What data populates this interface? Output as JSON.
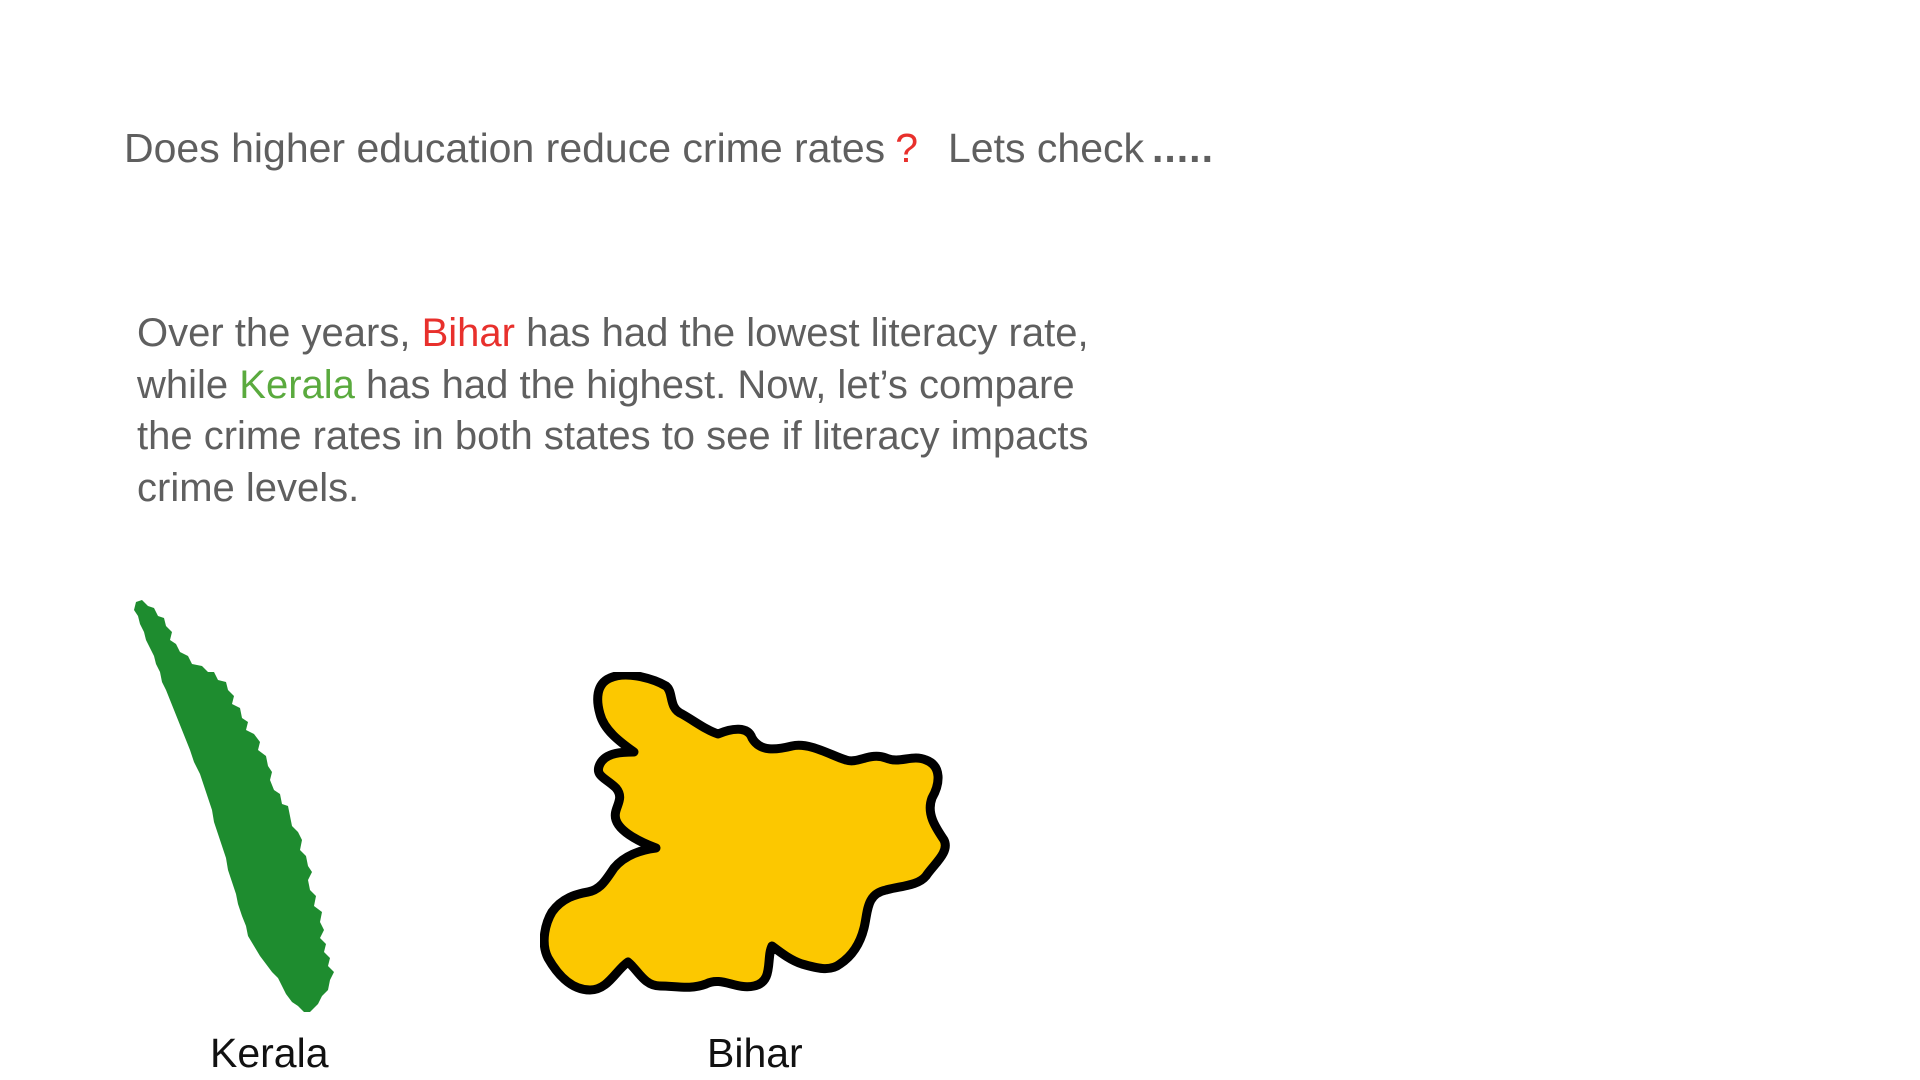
{
  "title": {
    "question": "Does higher education reduce crime rates",
    "question_mark": "?",
    "check": "Lets check",
    "dots": "....."
  },
  "body": {
    "part1": "Over the years, ",
    "state_low": "Bihar",
    "part2": " has had the lowest literacy rate, while ",
    "state_high": "Kerala",
    "part3": " has had the highest. Now, let’s compare the crime rates in both states to see if literacy impacts crime levels."
  },
  "maps": {
    "kerala": {
      "label": "Kerala",
      "fill": "#1e8c2f"
    },
    "bihar": {
      "label": "Bihar",
      "fill": "#fcc800",
      "stroke": "#000000"
    }
  },
  "colors": {
    "text_gray": "#5f5f5f",
    "highlight_red": "#e8302c",
    "highlight_green": "#5aaa3e"
  }
}
